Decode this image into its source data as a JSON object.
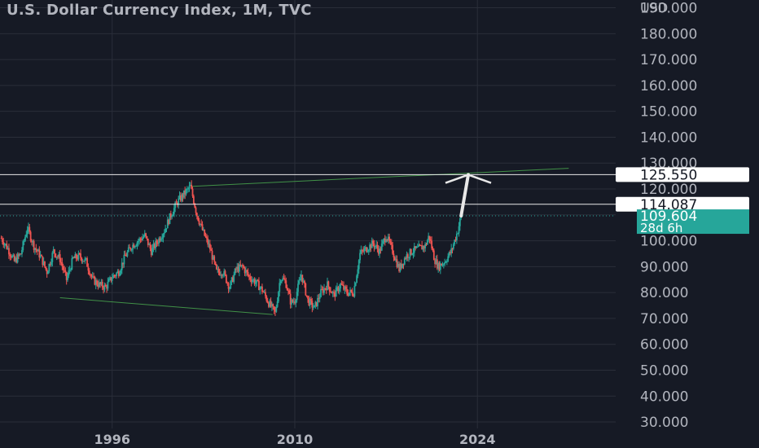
{
  "title": "U.S. Dollar Currency Index, 1M, TVC",
  "currency": "USD",
  "colors": {
    "background": "#161a25",
    "grid": "#2a2e39",
    "text": "#b2b5be",
    "up": "#26a69a",
    "down": "#ef5350",
    "trendline": "#4caf50",
    "level": "#ffffff",
    "current_badge": "#26a69a"
  },
  "chart_data": {
    "type": "candlestick",
    "title": "U.S. Dollar Currency Index, 1M, TVC",
    "x_ticks": [
      "1996",
      "2010",
      "2024"
    ],
    "y_ticks": [
      30,
      40,
      50,
      60,
      70,
      80,
      90,
      100,
      110,
      120,
      130,
      140,
      150,
      160,
      170,
      180,
      190
    ],
    "y_tick_labels": [
      "30.000",
      "40.000",
      "50.000",
      "60.000",
      "70.000",
      "80.000",
      "90.000",
      "100.000",
      "110.000",
      "120.000",
      "130.000",
      "140.000",
      "150.000",
      "160.000",
      "170.000",
      "180.000",
      "190.000"
    ],
    "xlim": [
      1987.4,
      2034.6
    ],
    "ylim": [
      27.5,
      193
    ],
    "grid": true,
    "price_series": {
      "name": "DXY monthly close (approx.)",
      "points": [
        [
          1987.5,
          101
        ],
        [
          1988.0,
          97
        ],
        [
          1988.5,
          92
        ],
        [
          1989.0,
          95
        ],
        [
          1989.5,
          105
        ],
        [
          1990.0,
          98
        ],
        [
          1990.5,
          94
        ],
        [
          1991.0,
          88
        ],
        [
          1991.5,
          96
        ],
        [
          1992.0,
          93
        ],
        [
          1992.5,
          85
        ],
        [
          1993.0,
          93
        ],
        [
          1993.5,
          94
        ],
        [
          1994.0,
          92
        ],
        [
          1994.5,
          85
        ],
        [
          1995.0,
          83
        ],
        [
          1995.5,
          82
        ],
        [
          1996.0,
          86
        ],
        [
          1996.5,
          88
        ],
        [
          1997.0,
          94
        ],
        [
          1997.5,
          98
        ],
        [
          1998.0,
          100
        ],
        [
          1998.5,
          102
        ],
        [
          1999.0,
          96
        ],
        [
          1999.5,
          100
        ],
        [
          2000.0,
          104
        ],
        [
          2000.5,
          110
        ],
        [
          2001.0,
          115
        ],
        [
          2001.5,
          118
        ],
        [
          2002.0,
          121
        ],
        [
          2002.5,
          110
        ],
        [
          2003.0,
          103
        ],
        [
          2003.5,
          97
        ],
        [
          2004.0,
          88
        ],
        [
          2004.5,
          88
        ],
        [
          2005.0,
          82
        ],
        [
          2005.5,
          89
        ],
        [
          2006.0,
          90
        ],
        [
          2006.5,
          86
        ],
        [
          2007.0,
          84
        ],
        [
          2007.5,
          81
        ],
        [
          2008.0,
          76
        ],
        [
          2008.5,
          72
        ],
        [
          2008.9,
          86
        ],
        [
          2009.3,
          84
        ],
        [
          2009.7,
          76
        ],
        [
          2010.0,
          77
        ],
        [
          2010.5,
          87
        ],
        [
          2011.0,
          77
        ],
        [
          2011.5,
          74
        ],
        [
          2012.0,
          80
        ],
        [
          2012.5,
          83
        ],
        [
          2013.0,
          79
        ],
        [
          2013.5,
          83
        ],
        [
          2014.0,
          80
        ],
        [
          2014.5,
          80
        ],
        [
          2015.0,
          95
        ],
        [
          2015.5,
          97
        ],
        [
          2016.0,
          99
        ],
        [
          2016.5,
          96
        ],
        [
          2017.0,
          102
        ],
        [
          2017.5,
          96
        ],
        [
          2018.0,
          89
        ],
        [
          2018.5,
          94
        ],
        [
          2019.0,
          96
        ],
        [
          2019.5,
          97
        ],
        [
          2020.0,
          98
        ],
        [
          2020.3,
          102
        ],
        [
          2020.7,
          93
        ],
        [
          2021.0,
          90
        ],
        [
          2021.5,
          92
        ],
        [
          2022.0,
          96
        ],
        [
          2022.5,
          104
        ],
        [
          2022.75,
          109.6
        ]
      ]
    },
    "lines": [
      {
        "name": "upper-trendline",
        "kind": "trend",
        "points": [
          [
            2002.0,
            121.0
          ],
          [
            2031.0,
            128.0
          ]
        ]
      },
      {
        "name": "lower-trendline",
        "kind": "trend",
        "points": [
          [
            1992.0,
            78.0
          ],
          [
            2008.3,
            71.5
          ]
        ]
      },
      {
        "name": "level-125-550",
        "kind": "horizontal",
        "value": 125.55
      },
      {
        "name": "level-114-087",
        "kind": "horizontal",
        "value": 114.087
      },
      {
        "name": "current-price-line",
        "kind": "dotted",
        "value": 109.604
      }
    ],
    "arrow": {
      "from": [
        2022.75,
        109.6
      ],
      "to": [
        2023.3,
        125.5
      ]
    },
    "price_labels": [
      {
        "name": "label-125-550",
        "text": "125.550",
        "value": 125.55,
        "style": "white"
      },
      {
        "name": "label-114-087",
        "text": "114.087",
        "value": 114.087,
        "style": "white"
      },
      {
        "name": "label-current",
        "text": "109.604",
        "sub": "28d 6h",
        "value": 109.604,
        "style": "green"
      }
    ]
  }
}
